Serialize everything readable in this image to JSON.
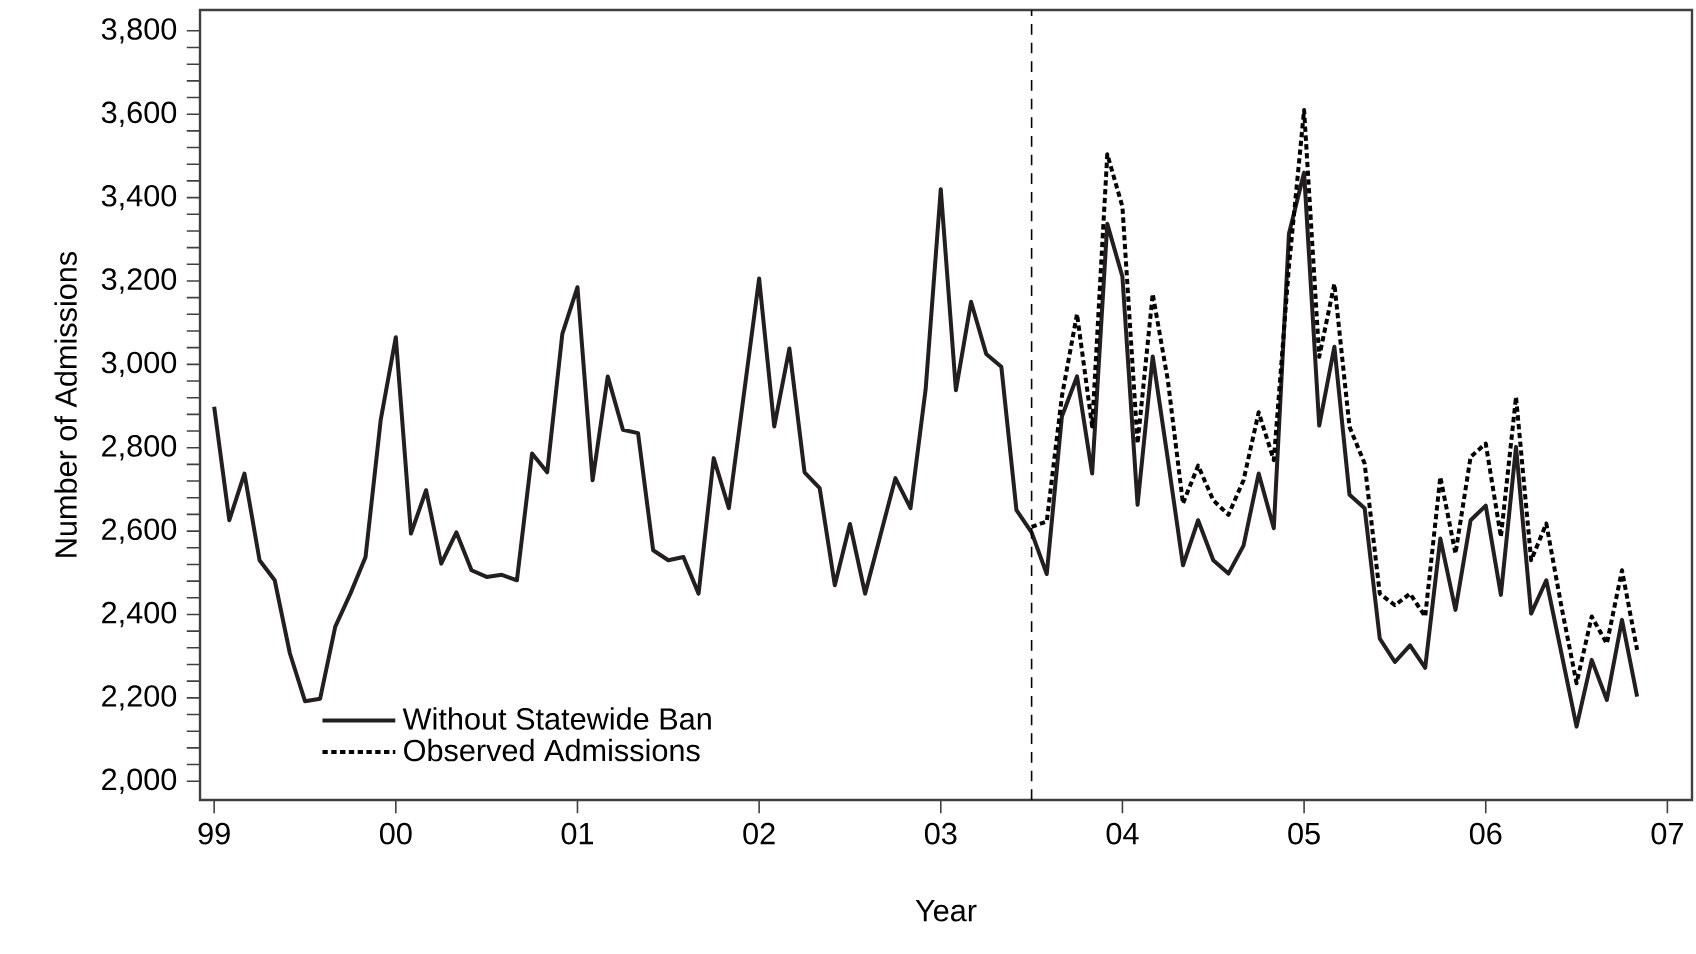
{
  "chart_data": {
    "type": "line",
    "xlabel": "Year",
    "ylabel": "Number of Admissions",
    "x": [
      "1999-01",
      "1999-02",
      "1999-03",
      "1999-04",
      "1999-05",
      "1999-06",
      "1999-07",
      "1999-08",
      "1999-09",
      "1999-10",
      "1999-11",
      "1999-12",
      "2000-01",
      "2000-02",
      "2000-03",
      "2000-04",
      "2000-05",
      "2000-06",
      "2000-07",
      "2000-08",
      "2000-09",
      "2000-10",
      "2000-11",
      "2000-12",
      "2001-01",
      "2001-02",
      "2001-03",
      "2001-04",
      "2001-05",
      "2001-06",
      "2001-07",
      "2001-08",
      "2001-09",
      "2001-10",
      "2001-11",
      "2001-12",
      "2002-01",
      "2002-02",
      "2002-03",
      "2002-04",
      "2002-05",
      "2002-06",
      "2002-07",
      "2002-08",
      "2002-09",
      "2002-10",
      "2002-11",
      "2002-12",
      "2003-01",
      "2003-02",
      "2003-03",
      "2003-04",
      "2003-05",
      "2003-06",
      "2003-07",
      "2003-08",
      "2003-09",
      "2003-10",
      "2003-11",
      "2003-12",
      "2004-01",
      "2004-02",
      "2004-03",
      "2004-04",
      "2004-05",
      "2004-06",
      "2004-07",
      "2004-08",
      "2004-09",
      "2004-10",
      "2004-11",
      "2004-12",
      "2005-01",
      "2005-02",
      "2005-03",
      "2005-04",
      "2005-05",
      "2005-06",
      "2005-07",
      "2005-08",
      "2005-09",
      "2005-10",
      "2005-11",
      "2005-12",
      "2006-01",
      "2006-02",
      "2006-03",
      "2006-04",
      "2006-05",
      "2006-06",
      "2006-07",
      "2006-08",
      "2006-09",
      "2006-10",
      "2006-11"
    ],
    "series": [
      {
        "name": "Without Statewide Ban",
        "color": "#231f20",
        "line_style": "solid",
        "values": [
          2898,
          2626,
          2738,
          2530,
          2482,
          2307,
          2192,
          2198,
          2371,
          2450,
          2538,
          2866,
          3065,
          2594,
          2698,
          2522,
          2597,
          2506,
          2490,
          2495,
          2482,
          2786,
          2741,
          3073,
          3185,
          2722,
          2971,
          2843,
          2835,
          2554,
          2530,
          2538,
          2450,
          2775,
          2655,
          2930,
          3206,
          2851,
          3038,
          2741,
          2703,
          2470,
          2617,
          2450,
          2588,
          2727,
          2655,
          2940,
          3420,
          2938,
          3150,
          3025,
          2994,
          2650,
          2597,
          2497,
          2875,
          2971,
          2738,
          3337,
          3210,
          2663,
          3019,
          2772,
          2518,
          2626,
          2530,
          2498,
          2565,
          2738,
          2607,
          3313,
          3460,
          2853,
          3042,
          2687,
          2655,
          2342,
          2286,
          2326,
          2272,
          2582,
          2411,
          2626,
          2661,
          2447,
          2802,
          2402,
          2482,
          2307,
          2131,
          2291,
          2195,
          2387,
          2203
        ]
      },
      {
        "name": "Observed Admissions",
        "color": "#000000",
        "line_style": "dotted",
        "values": [
          null,
          null,
          null,
          null,
          null,
          null,
          null,
          null,
          null,
          null,
          null,
          null,
          null,
          null,
          null,
          null,
          null,
          null,
          null,
          null,
          null,
          null,
          null,
          null,
          null,
          null,
          null,
          null,
          null,
          null,
          null,
          null,
          null,
          null,
          null,
          null,
          null,
          null,
          null,
          null,
          null,
          null,
          null,
          null,
          null,
          null,
          null,
          null,
          null,
          null,
          null,
          null,
          null,
          null,
          2610,
          2623,
          2923,
          3121,
          2851,
          3504,
          3378,
          2810,
          3169,
          2962,
          2666,
          2757,
          2674,
          2639,
          2722,
          2885,
          2770,
          3235,
          3610,
          3018,
          3193,
          2850,
          2762,
          2450,
          2422,
          2450,
          2395,
          2730,
          2546,
          2778,
          2810,
          2586,
          2922,
          2530,
          2618,
          2419,
          2235,
          2395,
          2330,
          2506,
          2315
        ]
      }
    ],
    "xlim": [
      "1998-12-03",
      "2007-02-20"
    ],
    "xticks": [
      {
        "value": "1999-01",
        "label": "99"
      },
      {
        "value": "2000-01",
        "label": "00"
      },
      {
        "value": "2001-01",
        "label": "01"
      },
      {
        "value": "2002-01",
        "label": "02"
      },
      {
        "value": "2003-01",
        "label": "03"
      },
      {
        "value": "2004-01",
        "label": "04"
      },
      {
        "value": "2005-01",
        "label": "05"
      },
      {
        "value": "2006-01",
        "label": "06"
      },
      {
        "value": "2007-01",
        "label": "07"
      }
    ],
    "ylim": [
      1955,
      3850
    ],
    "yticks": [
      {
        "value": 2000,
        "label": "2,000"
      },
      {
        "value": 2200,
        "label": "2,200"
      },
      {
        "value": 2400,
        "label": "2,400"
      },
      {
        "value": 2600,
        "label": "2,600"
      },
      {
        "value": 2800,
        "label": "2,800"
      },
      {
        "value": 3000,
        "label": "3,000"
      },
      {
        "value": 3200,
        "label": "3,200"
      },
      {
        "value": 3400,
        "label": "3,400"
      },
      {
        "value": 3600,
        "label": "3,600"
      },
      {
        "value": 3800,
        "label": "3,800"
      },
      {
        "value": 2040,
        "label": null
      },
      {
        "value": 2080,
        "label": null
      },
      {
        "value": 2120,
        "label": null
      },
      {
        "value": 2160,
        "label": null
      },
      {
        "value": 2240,
        "label": null
      },
      {
        "value": 2280,
        "label": null
      },
      {
        "value": 2320,
        "label": null
      },
      {
        "value": 2360,
        "label": null
      },
      {
        "value": 2440,
        "label": null
      },
      {
        "value": 2480,
        "label": null
      },
      {
        "value": 2520,
        "label": null
      },
      {
        "value": 2560,
        "label": null
      },
      {
        "value": 2640,
        "label": null
      },
      {
        "value": 2680,
        "label": null
      },
      {
        "value": 2720,
        "label": null
      },
      {
        "value": 2760,
        "label": null
      },
      {
        "value": 2840,
        "label": null
      },
      {
        "value": 2880,
        "label": null
      },
      {
        "value": 2920,
        "label": null
      },
      {
        "value": 2960,
        "label": null
      },
      {
        "value": 3040,
        "label": null
      },
      {
        "value": 3080,
        "label": null
      },
      {
        "value": 3120,
        "label": null
      },
      {
        "value": 3160,
        "label": null
      },
      {
        "value": 3240,
        "label": null
      },
      {
        "value": 3280,
        "label": null
      },
      {
        "value": 3320,
        "label": null
      },
      {
        "value": 3360,
        "label": null
      },
      {
        "value": 3440,
        "label": null
      },
      {
        "value": 3480,
        "label": null
      },
      {
        "value": 3520,
        "label": null
      },
      {
        "value": 3560,
        "label": null
      },
      {
        "value": 3640,
        "label": null
      },
      {
        "value": 3680,
        "label": null
      },
      {
        "value": 3720,
        "label": null
      },
      {
        "value": 3760,
        "label": null
      }
    ],
    "ref_lines": [
      {
        "axis": "x",
        "value": "2003-07",
        "line_style": "dashed"
      }
    ],
    "grid": false,
    "legend": "bottom left",
    "marker": "none"
  }
}
